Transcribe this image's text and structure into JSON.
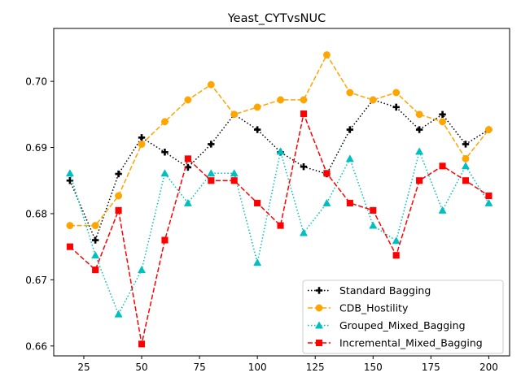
{
  "chart_data": {
    "type": "line",
    "title": "Yeast_CYTvsNUC",
    "xlabel": "",
    "ylabel": "",
    "xlim": [
      12,
      209
    ],
    "ylim": [
      0.6585,
      0.708
    ],
    "xticks": [
      25,
      50,
      75,
      100,
      125,
      150,
      175,
      200
    ],
    "yticks": [
      0.66,
      0.67,
      0.68,
      0.69,
      0.7
    ],
    "ytick_labels": [
      "0.66",
      "0.67",
      "0.68",
      "0.69",
      "0.70"
    ],
    "grid": false,
    "legend_position": "lower right",
    "x": [
      19,
      30,
      40,
      50,
      60,
      70,
      80,
      90,
      100,
      110,
      120,
      130,
      140,
      150,
      160,
      170,
      180,
      190,
      200
    ],
    "series": [
      {
        "name": "Standard Bagging",
        "color": "#000000",
        "linestyle": "dotted",
        "marker": "plus",
        "values": [
          0.685,
          0.676,
          0.686,
          0.6915,
          0.6893,
          0.687,
          0.6905,
          0.695,
          0.6927,
          0.6893,
          0.6871,
          0.686,
          0.6927,
          0.6972,
          0.6961,
          0.6927,
          0.695,
          0.6905,
          0.6927
        ]
      },
      {
        "name": "CDB_Hostility",
        "color": "#ffa500",
        "linestyle": "dashed",
        "marker": "circle",
        "values": [
          0.6782,
          0.6782,
          0.6827,
          0.6905,
          0.6939,
          0.6972,
          0.6995,
          0.695,
          0.6961,
          0.6972,
          0.6972,
          0.704,
          0.6983,
          0.6972,
          0.6983,
          0.695,
          0.6939,
          0.6883,
          0.6927
        ]
      },
      {
        "name": "Grouped_Mixed_Bagging",
        "color": "#00bfbf",
        "linestyle": "dotted",
        "marker": "triangle",
        "values": [
          0.6861,
          0.6737,
          0.6648,
          0.6715,
          0.6861,
          0.6816,
          0.6861,
          0.6861,
          0.6726,
          0.6894,
          0.6771,
          0.6816,
          0.6883,
          0.6782,
          0.6759,
          0.6894,
          0.6805,
          0.6872,
          0.6816
        ]
      },
      {
        "name": "Incremental_Mixed_Bagging",
        "color": "#ff0000",
        "linestyle": "dashed",
        "marker": "square",
        "values": [
          0.675,
          0.6715,
          0.6805,
          0.6603,
          0.676,
          0.6883,
          0.685,
          0.685,
          0.6816,
          0.6782,
          0.6951,
          0.6861,
          0.6816,
          0.6805,
          0.6737,
          0.685,
          0.6872,
          0.685,
          0.6827
        ]
      }
    ]
  }
}
